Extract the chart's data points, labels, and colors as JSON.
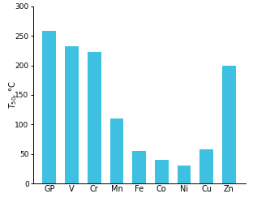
{
  "categories": [
    "GP",
    "V",
    "Cr",
    "Mn",
    "Fe",
    "Co",
    "Ni",
    "Cu",
    "Zn"
  ],
  "values": [
    258,
    233,
    223,
    110,
    55,
    40,
    30,
    58,
    200
  ],
  "bar_color": "#3ec0e0",
  "ylabel": "$T_{50}$, °C",
  "ylim": [
    0,
    300
  ],
  "yticks": [
    0,
    50,
    100,
    150,
    200,
    250,
    300
  ],
  "ylabel_fontsize": 7,
  "tick_fontsize": 6.5,
  "xtick_fontsize": 7,
  "bar_width": 0.6,
  "fig_width": 3.12,
  "fig_height": 2.6,
  "dpi": 100
}
